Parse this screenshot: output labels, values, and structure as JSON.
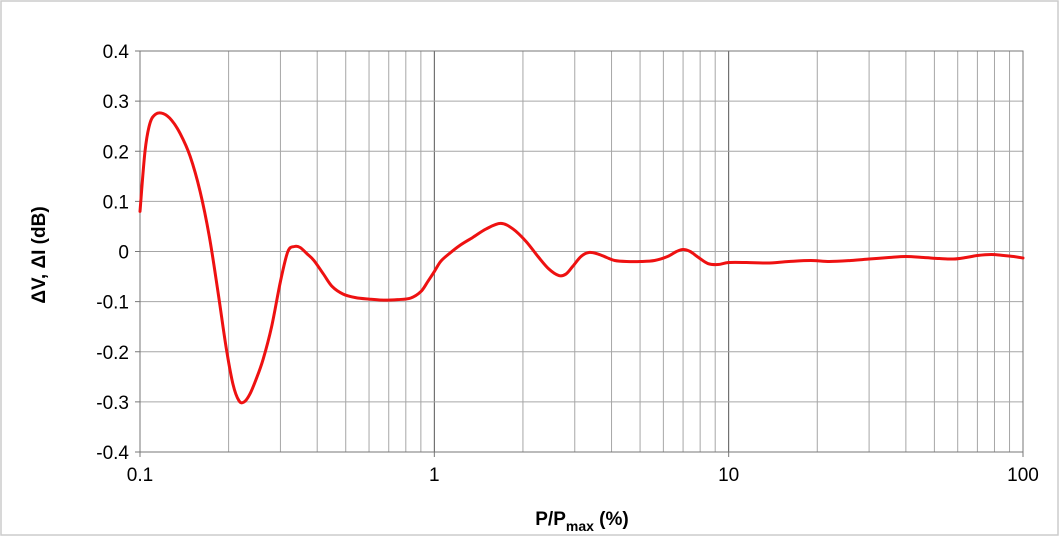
{
  "chart_data": {
    "type": "line",
    "title": "",
    "xlabel": {
      "main": "P/P",
      "sub": "max",
      "suffix": " (%)"
    },
    "ylabel": "ΔV,  ΔI (dB)",
    "x_scale": "log",
    "xlim": [
      0.1,
      100
    ],
    "ylim": [
      -0.4,
      0.4
    ],
    "xticks": [
      0.1,
      1,
      10,
      100
    ],
    "xtick_labels": [
      "0.1",
      "1",
      "10",
      "100"
    ],
    "yticks": [
      0.4,
      0.3,
      0.2,
      0.1,
      0,
      -0.1,
      -0.2,
      -0.3,
      -0.4
    ],
    "ytick_labels": [
      "0.4",
      "0.3",
      "0.2",
      "0.1",
      "0",
      "-0.1",
      "-0.2",
      "-0.3",
      "-0.4"
    ],
    "grid": true,
    "legend": false,
    "series": [
      {
        "color": "#ee1111",
        "x": [
          0.1,
          0.104,
          0.108,
          0.113,
          0.12,
          0.128,
          0.137,
          0.148,
          0.16,
          0.172,
          0.184,
          0.196,
          0.207,
          0.217,
          0.226,
          0.236,
          0.248,
          0.262,
          0.28,
          0.3,
          0.318,
          0.335,
          0.35,
          0.37,
          0.39,
          0.42,
          0.45,
          0.49,
          0.54,
          0.6,
          0.67,
          0.75,
          0.83,
          0.9,
          0.95,
          1.0,
          1.05,
          1.12,
          1.22,
          1.35,
          1.5,
          1.68,
          1.85,
          2.05,
          2.25,
          2.45,
          2.65,
          2.8,
          2.95,
          3.15,
          3.35,
          3.6,
          3.85,
          4.1,
          4.5,
          5.0,
          5.6,
          6.2,
          6.65,
          7.0,
          7.4,
          7.9,
          8.5,
          9.2,
          10.0,
          11.5,
          13.5,
          16.0,
          19.0,
          22.0,
          26.0,
          30.0,
          35.0,
          40.0,
          46.0,
          52.0,
          58.0,
          64.0,
          70.0,
          78.0,
          86.0,
          93.0,
          100.0
        ],
        "y": [
          0.08,
          0.2,
          0.255,
          0.274,
          0.275,
          0.262,
          0.235,
          0.19,
          0.12,
          0.03,
          -0.08,
          -0.19,
          -0.265,
          -0.298,
          -0.3,
          -0.285,
          -0.255,
          -0.215,
          -0.15,
          -0.06,
          0.0,
          0.01,
          0.008,
          -0.005,
          -0.018,
          -0.045,
          -0.07,
          -0.085,
          -0.092,
          -0.095,
          -0.097,
          -0.096,
          -0.093,
          -0.08,
          -0.06,
          -0.04,
          -0.02,
          -0.005,
          0.012,
          0.028,
          0.045,
          0.056,
          0.045,
          0.02,
          -0.01,
          -0.035,
          -0.048,
          -0.045,
          -0.03,
          -0.01,
          -0.002,
          -0.005,
          -0.012,
          -0.018,
          -0.02,
          -0.02,
          -0.018,
          -0.01,
          0.0,
          0.004,
          0.0,
          -0.012,
          -0.024,
          -0.026,
          -0.022,
          -0.022,
          -0.023,
          -0.02,
          -0.018,
          -0.02,
          -0.018,
          -0.015,
          -0.012,
          -0.01,
          -0.012,
          -0.014,
          -0.015,
          -0.012,
          -0.008,
          -0.006,
          -0.008,
          -0.01,
          -0.013
        ]
      }
    ]
  }
}
